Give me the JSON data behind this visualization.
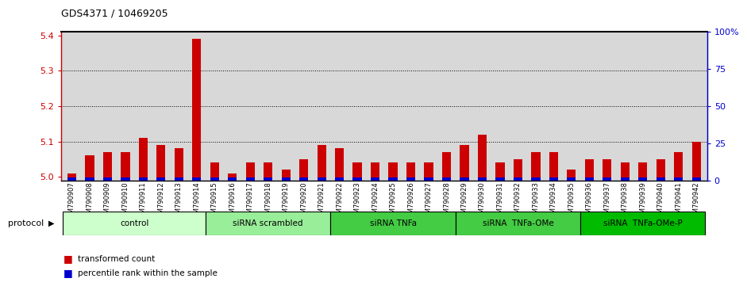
{
  "title": "GDS4371 / 10469205",
  "samples": [
    "GSM790907",
    "GSM790908",
    "GSM790909",
    "GSM790910",
    "GSM790911",
    "GSM790912",
    "GSM790913",
    "GSM790914",
    "GSM790915",
    "GSM790916",
    "GSM790917",
    "GSM790918",
    "GSM790919",
    "GSM790920",
    "GSM790921",
    "GSM790922",
    "GSM790923",
    "GSM790924",
    "GSM790925",
    "GSM790926",
    "GSM790927",
    "GSM790928",
    "GSM790929",
    "GSM790930",
    "GSM790931",
    "GSM790932",
    "GSM790933",
    "GSM790934",
    "GSM790935",
    "GSM790936",
    "GSM790937",
    "GSM790938",
    "GSM790939",
    "GSM790940",
    "GSM790941",
    "GSM790942"
  ],
  "red_values": [
    5.01,
    5.06,
    5.07,
    5.07,
    5.11,
    5.09,
    5.08,
    5.39,
    5.04,
    5.01,
    5.04,
    5.04,
    5.02,
    5.05,
    5.09,
    5.08,
    5.04,
    5.04,
    5.04,
    5.04,
    5.04,
    5.07,
    5.09,
    5.12,
    5.04,
    5.05,
    5.07,
    5.07,
    5.02,
    5.05,
    5.05,
    5.04,
    5.04,
    5.05,
    5.07,
    5.1
  ],
  "blue_percentile": [
    2,
    2,
    2,
    2,
    2,
    2,
    2,
    2,
    2,
    2,
    2,
    2,
    2,
    2,
    2,
    2,
    2,
    2,
    2,
    2,
    2,
    2,
    2,
    2,
    2,
    2,
    2,
    2,
    2,
    2,
    2,
    2,
    2,
    2,
    2,
    2
  ],
  "groups": [
    {
      "label": "control",
      "start": 0,
      "end": 8,
      "color": "#ccffcc"
    },
    {
      "label": "siRNA scrambled",
      "start": 8,
      "end": 15,
      "color": "#99ee99"
    },
    {
      "label": "siRNA TNFa",
      "start": 15,
      "end": 22,
      "color": "#44cc44"
    },
    {
      "label": "siRNA  TNFa-OMe",
      "start": 22,
      "end": 29,
      "color": "#44cc44"
    },
    {
      "label": "siRNA  TNFa-OMe-P",
      "start": 29,
      "end": 36,
      "color": "#00bb00"
    }
  ],
  "ylim_left": [
    4.99,
    5.41
  ],
  "yticks_left": [
    5.0,
    5.1,
    5.2,
    5.3,
    5.4
  ],
  "ylim_right": [
    0,
    100
  ],
  "yticks_right": [
    0,
    25,
    50,
    75,
    100
  ],
  "ytick_labels_right": [
    "0",
    "25",
    "50",
    "75",
    "100%"
  ],
  "left_tick_color": "#cc0000",
  "right_tick_color": "#0000cc",
  "bar_color_red": "#cc0000",
  "bar_color_blue": "#0000cc",
  "bg_color": "#d8d8d8",
  "legend_red": "transformed count",
  "legend_blue": "percentile rank within the sample",
  "protocol_label": "protocol"
}
